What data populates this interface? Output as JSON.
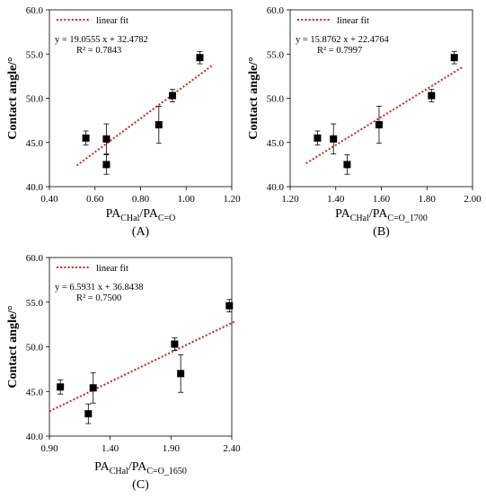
{
  "figure": {
    "style": {
      "marker_color": "#000000",
      "fit_line_color": "#c0281f",
      "frame_color": "#000000"
    }
  },
  "chart_data": [
    {
      "panel_label": "(A)",
      "type": "scatter",
      "ylabel": "Contact angle/°",
      "xlabel_main": "PA",
      "xlabel_sub1": "CHal",
      "xlabel_mid": "/PA",
      "xlabel_sub2": "C=O",
      "xlim": [
        0.4,
        1.2
      ],
      "ylim": [
        40.0,
        60.0
      ],
      "xticks": [
        "0.40",
        "0.60",
        "0.80",
        "1.00",
        "1.20"
      ],
      "yticks": [
        "40.0",
        "45.0",
        "50.0",
        "55.0",
        "60.0"
      ],
      "legend": "linear fit",
      "equation": "y = 19.0555 x + 32.4782",
      "r2": "R² = 0.7843",
      "fit": {
        "slope": 19.0555,
        "intercept": 32.4782,
        "x_range": [
          0.52,
          1.12
        ]
      },
      "points": [
        {
          "x": 0.56,
          "y": 45.5,
          "err": 0.8
        },
        {
          "x": 0.65,
          "y": 45.4,
          "err": 1.7
        },
        {
          "x": 0.65,
          "y": 42.5,
          "err": 1.1
        },
        {
          "x": 0.88,
          "y": 47.0,
          "err": 2.1
        },
        {
          "x": 0.94,
          "y": 50.3,
          "err": 0.7
        },
        {
          "x": 1.06,
          "y": 54.6,
          "err": 0.7
        }
      ]
    },
    {
      "panel_label": "(B)",
      "type": "scatter",
      "ylabel": "Contact angle/°",
      "xlabel_main": "PA",
      "xlabel_sub1": "CHal",
      "xlabel_mid": "/PA",
      "xlabel_sub2": "C=O_1700",
      "xlim": [
        1.2,
        2.0
      ],
      "ylim": [
        40.0,
        60.0
      ],
      "xticks": [
        "1.20",
        "1.40",
        "1.60",
        "1.80",
        "2.00"
      ],
      "yticks": [
        "40.0",
        "45.0",
        "50.0",
        "55.0",
        "60.0"
      ],
      "legend": "linear fit",
      "equation": "y = 15.8762 x + 22.4764",
      "r2": "R² = 0.7997",
      "fit": {
        "slope": 15.8762,
        "intercept": 22.4764,
        "x_range": [
          1.27,
          1.96
        ]
      },
      "points": [
        {
          "x": 1.32,
          "y": 45.5,
          "err": 0.8
        },
        {
          "x": 1.39,
          "y": 45.4,
          "err": 1.7
        },
        {
          "x": 1.45,
          "y": 42.5,
          "err": 1.1
        },
        {
          "x": 1.59,
          "y": 47.0,
          "err": 2.1
        },
        {
          "x": 1.82,
          "y": 50.3,
          "err": 0.7
        },
        {
          "x": 1.92,
          "y": 54.6,
          "err": 0.7
        }
      ]
    },
    {
      "panel_label": "(C)",
      "type": "scatter",
      "ylabel": "Contact angle/°",
      "xlabel_main": "PA",
      "xlabel_sub1": "CHal",
      "xlabel_mid": "/PA",
      "xlabel_sub2": "C=O_1650",
      "xlim": [
        0.9,
        2.4
      ],
      "ylim": [
        40.0,
        60.0
      ],
      "xticks": [
        "0.90",
        "1.40",
        "1.90",
        "2.40"
      ],
      "yticks": [
        "40.0",
        "45.0",
        "50.0",
        "55.0",
        "60.0"
      ],
      "legend": "linear fit",
      "equation": "y = 6.5931 x + 36.8438",
      "r2": "R² = 0.7500",
      "fit": {
        "slope": 6.5931,
        "intercept": 36.8438,
        "x_range": [
          0.9,
          2.42
        ]
      },
      "points": [
        {
          "x": 0.99,
          "y": 45.5,
          "err": 0.8
        },
        {
          "x": 1.26,
          "y": 45.4,
          "err": 1.7
        },
        {
          "x": 1.22,
          "y": 42.5,
          "err": 1.1
        },
        {
          "x": 1.98,
          "y": 47.0,
          "err": 2.1
        },
        {
          "x": 1.93,
          "y": 50.3,
          "err": 0.7
        },
        {
          "x": 2.38,
          "y": 54.6,
          "err": 0.7
        }
      ]
    }
  ]
}
